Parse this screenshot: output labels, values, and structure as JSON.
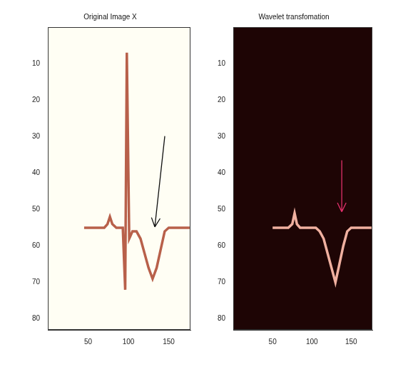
{
  "chart_data": [
    {
      "type": "line",
      "title": "Original Image X",
      "x": [
        45,
        60,
        70,
        74,
        77,
        80,
        85,
        93,
        96,
        98,
        101,
        105,
        110,
        115,
        120,
        125,
        130,
        135,
        140,
        145,
        150,
        160,
        176
      ],
      "values": [
        55,
        55,
        55,
        54,
        52,
        54,
        55,
        55,
        72,
        7,
        58,
        56,
        56,
        58,
        62,
        66,
        69,
        66,
        61,
        56,
        55,
        55,
        55
      ],
      "color": "#b8604a",
      "xlim": [
        0,
        177
      ],
      "ylim": [
        0,
        83
      ],
      "xticks": [
        50,
        100,
        150
      ],
      "yticks": [
        10,
        20,
        30,
        40,
        50,
        60,
        70,
        80
      ],
      "grid": false
    },
    {
      "type": "line",
      "title": "Wavelet transfomation",
      "x": [
        50,
        60,
        70,
        75,
        78,
        81,
        85,
        95,
        100,
        105,
        110,
        115,
        120,
        125,
        130,
        135,
        140,
        145,
        150,
        160,
        176
      ],
      "values": [
        55,
        55,
        55,
        54,
        51,
        54,
        55,
        55,
        55,
        55,
        56,
        58,
        62,
        66,
        70,
        65,
        60,
        56,
        55,
        55,
        55
      ],
      "color": "#f0b0a0",
      "xlim": [
        0,
        177
      ],
      "ylim": [
        0,
        83
      ],
      "xticks": [
        50,
        100,
        150
      ],
      "yticks": [
        10,
        20,
        30,
        40,
        50,
        60,
        70,
        80
      ],
      "grid": false
    }
  ]
}
